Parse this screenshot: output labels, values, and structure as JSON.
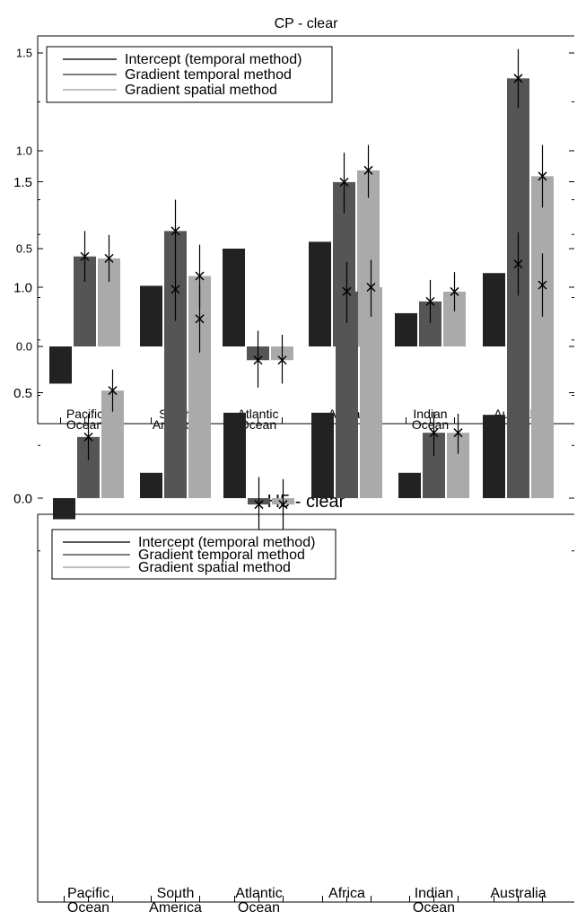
{
  "colors": {
    "intercept": "#222222",
    "gradient_temporal": "#555555",
    "gradient_spatial": "#aaaaaa",
    "axis": "#000000",
    "error_bar": "#000000"
  },
  "chart_data": [
    {
      "type": "bar",
      "title": "CP - clear",
      "xlabel": "",
      "ylabel": "",
      "ylim": [
        -0.38,
        1.62
      ],
      "yticks": [
        "0.0",
        "0.5",
        "1.0",
        "1.5"
      ],
      "grid": false,
      "legend_position": "top-left",
      "categories": [
        [
          "Pacific",
          "Ocean"
        ],
        [
          "South",
          "America"
        ],
        [
          "Atlantic",
          "Ocean"
        ],
        [
          "Africa"
        ],
        [
          "Indian",
          "Ocean"
        ],
        [
          "Australia"
        ]
      ],
      "series": [
        {
          "name": "Intercept (temporal method)",
          "color_key": "intercept",
          "values": [
            -0.19,
            0.31,
            0.5,
            0.535,
            0.17,
            0.375
          ]
        },
        {
          "name": "Gradient temporal method",
          "color_key": "gradient_temporal",
          "values": [
            0.46,
            0.59,
            -0.07,
            0.84,
            0.23,
            1.37
          ],
          "error_low": [
            0.33,
            0.43,
            -0.21,
            0.68,
            0.12,
            1.22
          ],
          "error_high": [
            0.59,
            0.75,
            0.08,
            0.99,
            0.34,
            1.52
          ]
        },
        {
          "name": "Gradient spatial method",
          "color_key": "gradient_spatial",
          "values": [
            0.45,
            0.36,
            -0.07,
            0.9,
            0.28,
            0.87
          ],
          "error_low": [
            0.33,
            0.2,
            -0.19,
            0.76,
            0.18,
            0.71
          ],
          "error_high": [
            0.57,
            0.52,
            0.06,
            1.03,
            0.38,
            1.03
          ]
        }
      ]
    },
    {
      "type": "bar",
      "title": "H5 - clear",
      "xlabel": "",
      "ylabel": "",
      "ylim": [
        -0.38,
        1.62
      ],
      "yticks": [
        "0.0",
        "0.5",
        "1.0",
        "1.5"
      ],
      "grid": false,
      "legend_position": "top-left",
      "categories": [
        [
          "Pacific",
          "Ocean"
        ],
        [
          "South",
          "America"
        ],
        [
          "Atlantic",
          "Ocean"
        ],
        [
          "Africa"
        ],
        [
          "Indian",
          "Ocean"
        ],
        [
          "Australia"
        ]
      ],
      "series": [
        {
          "name": "Intercept (temporal method)",
          "color_key": "intercept",
          "values": [
            -0.1,
            0.12,
            0.405,
            0.405,
            0.12,
            0.395
          ]
        },
        {
          "name": "Gradient temporal method",
          "color_key": "gradient_temporal",
          "values": [
            0.29,
            0.99,
            -0.03,
            0.98,
            0.31,
            1.11
          ],
          "error_low": [
            0.18,
            0.84,
            -0.16,
            0.83,
            0.2,
            0.96
          ],
          "error_high": [
            0.4,
            1.13,
            0.1,
            1.12,
            0.41,
            1.26
          ]
        },
        {
          "name": "Gradient spatial method",
          "color_key": "gradient_spatial",
          "values": [
            0.51,
            0.85,
            -0.03,
            1.0,
            0.31,
            1.01
          ],
          "error_low": [
            0.41,
            0.69,
            -0.15,
            0.86,
            0.21,
            0.86
          ],
          "error_high": [
            0.61,
            1.01,
            0.09,
            1.13,
            0.4,
            1.16
          ]
        }
      ]
    }
  ]
}
